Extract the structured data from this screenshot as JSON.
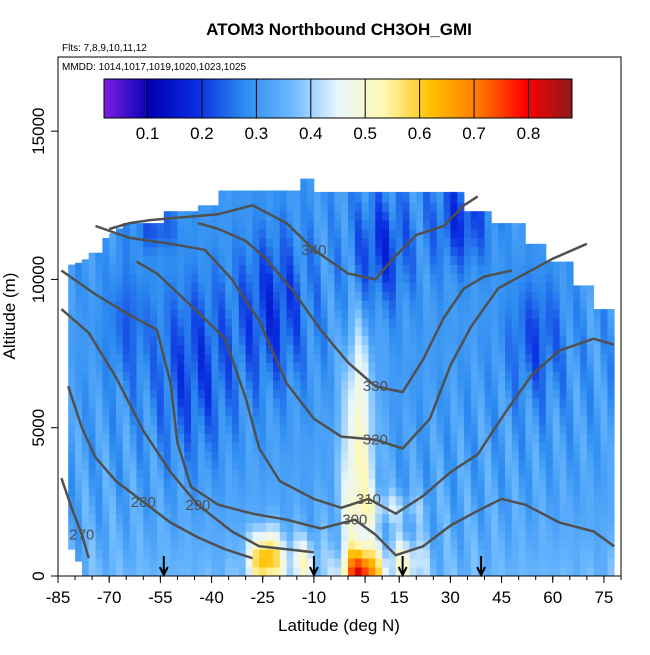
{
  "chart_data": {
    "type": "heatmap",
    "title": "ATOM3 Northbound CH3OH_GMI",
    "subtitle_flights": "Flts: 7,8,9,10,11,12",
    "subtitle_dates": "MMDD: 1014,1017,1019,1020,1023,1025",
    "xlabel": "Latitude (deg N)",
    "ylabel": "Altitude (m)",
    "xlim": [
      -85,
      80
    ],
    "ylim": [
      0,
      17500
    ],
    "x_ticks": [
      -85,
      -70,
      -55,
      -40,
      -25,
      -10,
      5,
      15,
      30,
      45,
      60,
      75
    ],
    "y_ticks": [
      0,
      5000,
      10000,
      15000
    ],
    "colorbar": {
      "range": [
        0.02,
        0.88
      ],
      "ticks": [
        0.1,
        0.2,
        0.3,
        0.4,
        0.5,
        0.6,
        0.7,
        0.8
      ],
      "colors": [
        "#7a1fe0",
        "#0000b4",
        "#0a2ee0",
        "#2d8cf0",
        "#6bb8ff",
        "#e8f6ff",
        "#fff8b0",
        "#ffc000",
        "#ff7a00",
        "#ff0000",
        "#8b1a1a"
      ]
    },
    "theta_contours": [
      {
        "label": "270",
        "points": [
          [
            -84,
            3300
          ],
          [
            -81,
            2300
          ],
          [
            -78,
            1400
          ],
          [
            -76,
            600
          ]
        ]
      },
      {
        "label": "280",
        "points": [
          [
            -82,
            6400
          ],
          [
            -78,
            5000
          ],
          [
            -74,
            4000
          ],
          [
            -68,
            3200
          ],
          [
            -60,
            2500
          ],
          [
            -52,
            1800
          ],
          [
            -44,
            1300
          ],
          [
            -36,
            900
          ],
          [
            -28,
            600
          ]
        ]
      },
      {
        "label": "290",
        "points": [
          [
            -84,
            9000
          ],
          [
            -76,
            8200
          ],
          [
            -68,
            6700
          ],
          [
            -60,
            4900
          ],
          [
            -52,
            3500
          ],
          [
            -44,
            2400
          ],
          [
            -34,
            1500
          ],
          [
            -26,
            1000
          ],
          [
            -18,
            900
          ],
          [
            -10,
            800
          ]
        ]
      },
      {
        "label": "300",
        "points": [
          [
            -84,
            10300
          ],
          [
            -74,
            9500
          ],
          [
            -64,
            8800
          ],
          [
            -56,
            8300
          ],
          [
            -52,
            6500
          ],
          [
            -50,
            4500
          ],
          [
            -46,
            3000
          ],
          [
            -38,
            2400
          ],
          [
            -28,
            2100
          ],
          [
            -18,
            1900
          ],
          [
            -8,
            1600
          ],
          [
            2,
            1900
          ],
          [
            8,
            1400
          ],
          [
            14,
            700
          ],
          [
            22,
            1000
          ],
          [
            30,
            1700
          ],
          [
            38,
            2200
          ],
          [
            45,
            2600
          ],
          [
            52,
            2400
          ],
          [
            62,
            1800
          ],
          [
            72,
            1500
          ],
          [
            78,
            1000
          ]
        ]
      },
      {
        "label": "310",
        "points": [
          [
            -62,
            10600
          ],
          [
            -56,
            10200
          ],
          [
            -44,
            8900
          ],
          [
            -36,
            8000
          ],
          [
            -30,
            6000
          ],
          [
            -26,
            4300
          ],
          [
            -20,
            3200
          ],
          [
            -10,
            2600
          ],
          [
            -2,
            2300
          ],
          [
            6,
            2600
          ],
          [
            14,
            2100
          ],
          [
            22,
            2700
          ],
          [
            30,
            3500
          ],
          [
            38,
            4100
          ],
          [
            46,
            5500
          ],
          [
            54,
            6800
          ],
          [
            62,
            7600
          ],
          [
            72,
            8000
          ],
          [
            78,
            7800
          ]
        ]
      },
      {
        "label": "320",
        "points": [
          [
            -74,
            11800
          ],
          [
            -64,
            11400
          ],
          [
            -52,
            11200
          ],
          [
            -42,
            11000
          ],
          [
            -34,
            10000
          ],
          [
            -26,
            8600
          ],
          [
            -18,
            6500
          ],
          [
            -10,
            5300
          ],
          [
            -2,
            4700
          ],
          [
            8,
            4600
          ],
          [
            16,
            4300
          ],
          [
            24,
            5300
          ],
          [
            30,
            7100
          ],
          [
            36,
            8400
          ],
          [
            44,
            9700
          ],
          [
            52,
            10200
          ],
          [
            60,
            10700
          ],
          [
            70,
            11200
          ]
        ]
      },
      {
        "label": "330",
        "points": [
          [
            -44,
            11900
          ],
          [
            -38,
            11700
          ],
          [
            -30,
            11300
          ],
          [
            -24,
            10700
          ],
          [
            -16,
            9600
          ],
          [
            -8,
            8300
          ],
          [
            0,
            7200
          ],
          [
            8,
            6400
          ],
          [
            16,
            6200
          ],
          [
            22,
            7300
          ],
          [
            28,
            8700
          ],
          [
            34,
            9700
          ],
          [
            40,
            10100
          ],
          [
            48,
            10300
          ]
        ]
      },
      {
        "label": "340",
        "points": [
          [
            -70,
            11700
          ],
          [
            -64,
            11900
          ],
          [
            -58,
            12000
          ],
          [
            -48,
            12100
          ],
          [
            -38,
            12200
          ],
          [
            -28,
            12500
          ],
          [
            -18,
            11900
          ],
          [
            -10,
            11000
          ],
          [
            0,
            10200
          ],
          [
            8,
            10000
          ],
          [
            14,
            10800
          ],
          [
            20,
            11500
          ],
          [
            28,
            11800
          ],
          [
            34,
            12500
          ],
          [
            38,
            12800
          ]
        ]
      }
    ],
    "arrows_x": [
      -54,
      -10,
      16,
      39
    ]
  }
}
